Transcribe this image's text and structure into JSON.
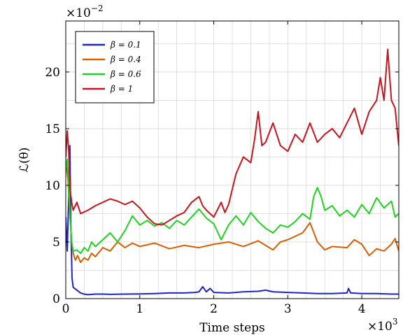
{
  "chart_data": {
    "type": "line",
    "title": "",
    "xlabel": "Time steps",
    "ylabel": "ℒ(θ)",
    "x_scale_label": {
      "base": "×10",
      "exp": "3"
    },
    "y_scale_label": {
      "base": "×10",
      "exp": "−2"
    },
    "xlim": [
      0,
      4.5
    ],
    "ylim": [
      0,
      24.5
    ],
    "x_ticks": [
      0,
      1,
      2,
      3,
      4
    ],
    "x_tick_labels": [
      "0",
      "1",
      "2",
      "3",
      "4"
    ],
    "y_ticks": [
      0,
      5,
      10,
      15,
      20
    ],
    "y_tick_labels": [
      "0",
      "5",
      "10",
      "15",
      "20"
    ],
    "grid": true,
    "legend_position": "top-left",
    "series": [
      {
        "name": "β = 0.1",
        "color": "#1f24c7",
        "points": [
          [
            0,
            7.2
          ],
          [
            0.02,
            4.2
          ],
          [
            0.04,
            9.0
          ],
          [
            0.055,
            13.5
          ],
          [
            0.07,
            6.0
          ],
          [
            0.085,
            1.8
          ],
          [
            0.1,
            1.0
          ],
          [
            0.13,
            0.85
          ],
          [
            0.16,
            0.7
          ],
          [
            0.2,
            0.5
          ],
          [
            0.25,
            0.4
          ],
          [
            0.3,
            0.35
          ],
          [
            0.4,
            0.4
          ],
          [
            0.5,
            0.4
          ],
          [
            0.6,
            0.38
          ],
          [
            0.8,
            0.4
          ],
          [
            1.0,
            0.42
          ],
          [
            1.2,
            0.45
          ],
          [
            1.4,
            0.5
          ],
          [
            1.6,
            0.5
          ],
          [
            1.75,
            0.55
          ],
          [
            1.8,
            0.6
          ],
          [
            1.85,
            1.05
          ],
          [
            1.9,
            0.6
          ],
          [
            1.95,
            0.9
          ],
          [
            2.0,
            0.55
          ],
          [
            2.2,
            0.5
          ],
          [
            2.4,
            0.6
          ],
          [
            2.6,
            0.65
          ],
          [
            2.7,
            0.75
          ],
          [
            2.8,
            0.6
          ],
          [
            3.0,
            0.55
          ],
          [
            3.2,
            0.5
          ],
          [
            3.4,
            0.45
          ],
          [
            3.6,
            0.45
          ],
          [
            3.8,
            0.5
          ],
          [
            3.82,
            0.9
          ],
          [
            3.85,
            0.5
          ],
          [
            4.0,
            0.45
          ],
          [
            4.2,
            0.45
          ],
          [
            4.4,
            0.4
          ],
          [
            4.5,
            0.4
          ]
        ]
      },
      {
        "name": "β = 0.4",
        "color": "#d95f02",
        "points": [
          [
            0,
            12.0
          ],
          [
            0.03,
            10.5
          ],
          [
            0.06,
            7.0
          ],
          [
            0.08,
            5.0
          ],
          [
            0.1,
            4.0
          ],
          [
            0.13,
            3.4
          ],
          [
            0.16,
            3.8
          ],
          [
            0.2,
            3.2
          ],
          [
            0.25,
            3.6
          ],
          [
            0.3,
            3.4
          ],
          [
            0.35,
            4.0
          ],
          [
            0.4,
            3.7
          ],
          [
            0.5,
            4.5
          ],
          [
            0.6,
            4.2
          ],
          [
            0.7,
            5.0
          ],
          [
            0.8,
            4.5
          ],
          [
            0.9,
            4.9
          ],
          [
            1.0,
            4.6
          ],
          [
            1.2,
            4.9
          ],
          [
            1.4,
            4.4
          ],
          [
            1.6,
            4.7
          ],
          [
            1.8,
            4.5
          ],
          [
            2.0,
            4.8
          ],
          [
            2.2,
            5.0
          ],
          [
            2.4,
            4.6
          ],
          [
            2.6,
            5.1
          ],
          [
            2.8,
            4.3
          ],
          [
            2.9,
            5.0
          ],
          [
            3.0,
            5.2
          ],
          [
            3.2,
            5.8
          ],
          [
            3.3,
            6.7
          ],
          [
            3.4,
            5.0
          ],
          [
            3.5,
            4.3
          ],
          [
            3.6,
            4.6
          ],
          [
            3.8,
            4.5
          ],
          [
            3.9,
            5.2
          ],
          [
            4.0,
            4.8
          ],
          [
            4.1,
            3.8
          ],
          [
            4.2,
            4.4
          ],
          [
            4.3,
            4.2
          ],
          [
            4.4,
            4.8
          ],
          [
            4.45,
            5.3
          ],
          [
            4.5,
            4.2
          ]
        ]
      },
      {
        "name": "β = 0.6",
        "color": "#1fd41f",
        "points": [
          [
            0,
            11.5
          ],
          [
            0.02,
            12.3
          ],
          [
            0.04,
            10.0
          ],
          [
            0.06,
            7.0
          ],
          [
            0.08,
            5.0
          ],
          [
            0.1,
            4.2
          ],
          [
            0.15,
            4.3
          ],
          [
            0.2,
            4.0
          ],
          [
            0.25,
            4.5
          ],
          [
            0.3,
            4.2
          ],
          [
            0.35,
            5.0
          ],
          [
            0.4,
            4.6
          ],
          [
            0.5,
            5.2
          ],
          [
            0.6,
            5.8
          ],
          [
            0.7,
            5.0
          ],
          [
            0.8,
            6.0
          ],
          [
            0.9,
            7.3
          ],
          [
            1.0,
            6.5
          ],
          [
            1.1,
            6.9
          ],
          [
            1.2,
            6.4
          ],
          [
            1.3,
            6.7
          ],
          [
            1.4,
            6.2
          ],
          [
            1.5,
            6.9
          ],
          [
            1.6,
            6.5
          ],
          [
            1.7,
            7.2
          ],
          [
            1.8,
            7.9
          ],
          [
            1.9,
            7.1
          ],
          [
            2.0,
            6.6
          ],
          [
            2.1,
            5.2
          ],
          [
            2.2,
            6.5
          ],
          [
            2.3,
            7.3
          ],
          [
            2.4,
            6.5
          ],
          [
            2.5,
            7.6
          ],
          [
            2.6,
            6.8
          ],
          [
            2.7,
            6.2
          ],
          [
            2.8,
            5.8
          ],
          [
            2.9,
            6.5
          ],
          [
            3.0,
            6.3
          ],
          [
            3.1,
            6.8
          ],
          [
            3.2,
            7.5
          ],
          [
            3.3,
            7.0
          ],
          [
            3.35,
            9.0
          ],
          [
            3.4,
            9.8
          ],
          [
            3.45,
            9.0
          ],
          [
            3.5,
            7.8
          ],
          [
            3.6,
            8.2
          ],
          [
            3.7,
            7.3
          ],
          [
            3.8,
            7.8
          ],
          [
            3.9,
            7.2
          ],
          [
            4.0,
            8.3
          ],
          [
            4.1,
            7.5
          ],
          [
            4.2,
            8.9
          ],
          [
            4.3,
            8.0
          ],
          [
            4.4,
            8.6
          ],
          [
            4.45,
            7.2
          ],
          [
            4.5,
            7.5
          ]
        ]
      },
      {
        "name": "β = 1",
        "color": "#c8141e",
        "points": [
          [
            0,
            12.5
          ],
          [
            0.02,
            14.8
          ],
          [
            0.04,
            13.0
          ],
          [
            0.06,
            9.5
          ],
          [
            0.08,
            8.5
          ],
          [
            0.1,
            7.8
          ],
          [
            0.15,
            8.5
          ],
          [
            0.2,
            7.5
          ],
          [
            0.3,
            7.8
          ],
          [
            0.4,
            8.2
          ],
          [
            0.5,
            8.5
          ],
          [
            0.6,
            8.8
          ],
          [
            0.7,
            8.6
          ],
          [
            0.8,
            8.3
          ],
          [
            0.9,
            8.6
          ],
          [
            1.0,
            8.0
          ],
          [
            1.1,
            7.2
          ],
          [
            1.2,
            6.6
          ],
          [
            1.3,
            6.5
          ],
          [
            1.4,
            6.9
          ],
          [
            1.5,
            7.3
          ],
          [
            1.6,
            7.6
          ],
          [
            1.7,
            8.5
          ],
          [
            1.8,
            9.0
          ],
          [
            1.85,
            8.2
          ],
          [
            1.9,
            7.8
          ],
          [
            2.0,
            7.2
          ],
          [
            2.1,
            8.5
          ],
          [
            2.15,
            7.6
          ],
          [
            2.2,
            8.3
          ],
          [
            2.3,
            11.0
          ],
          [
            2.4,
            12.5
          ],
          [
            2.5,
            12.0
          ],
          [
            2.55,
            14.0
          ],
          [
            2.6,
            16.5
          ],
          [
            2.65,
            13.5
          ],
          [
            2.7,
            13.8
          ],
          [
            2.8,
            15.5
          ],
          [
            2.9,
            13.5
          ],
          [
            3.0,
            13.0
          ],
          [
            3.1,
            14.5
          ],
          [
            3.2,
            13.8
          ],
          [
            3.3,
            15.5
          ],
          [
            3.4,
            13.8
          ],
          [
            3.5,
            14.5
          ],
          [
            3.6,
            15.0
          ],
          [
            3.7,
            14.2
          ],
          [
            3.8,
            15.5
          ],
          [
            3.9,
            16.8
          ],
          [
            4.0,
            14.5
          ],
          [
            4.1,
            16.5
          ],
          [
            4.2,
            17.5
          ],
          [
            4.25,
            19.5
          ],
          [
            4.3,
            17.5
          ],
          [
            4.35,
            22.0
          ],
          [
            4.4,
            17.5
          ],
          [
            4.45,
            16.8
          ],
          [
            4.5,
            13.5
          ]
        ]
      }
    ]
  }
}
